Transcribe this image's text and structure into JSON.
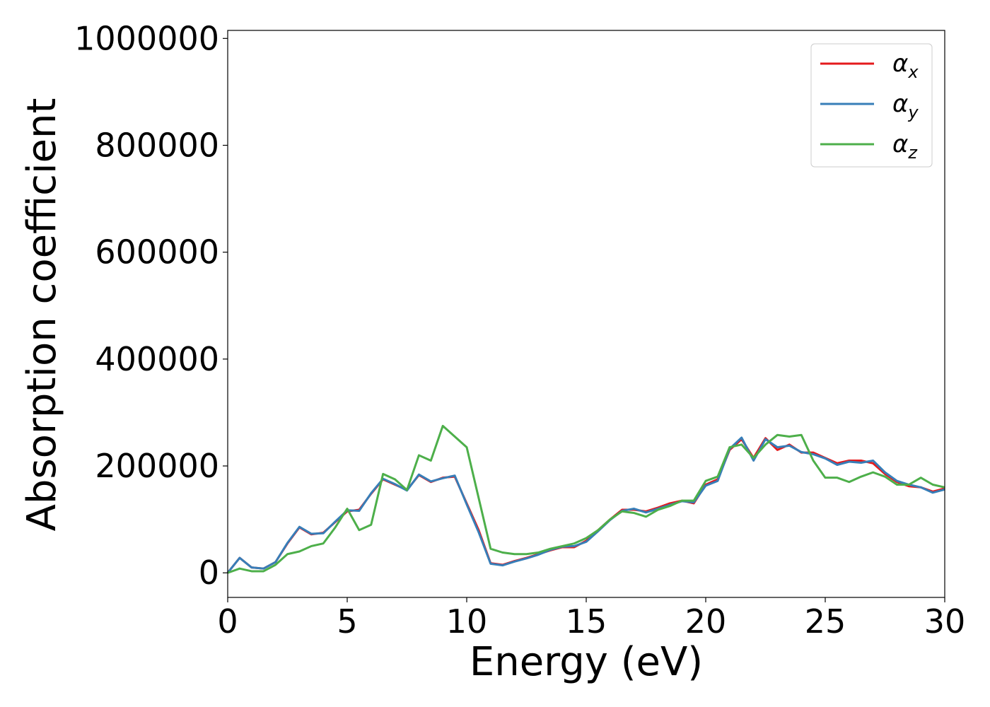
{
  "chart_data": {
    "type": "line",
    "xlabel": "Energy (eV)",
    "ylabel": "Absorption coefficient",
    "x": [
      0,
      0.5,
      1,
      1.5,
      2,
      2.5,
      3,
      3.5,
      4,
      4.5,
      5,
      5.5,
      6,
      6.5,
      7,
      7.5,
      8,
      8.5,
      9,
      9.5,
      10,
      10.5,
      11,
      11.5,
      12,
      12.5,
      13,
      13.5,
      14,
      14.5,
      15,
      15.5,
      16,
      16.5,
      17,
      17.5,
      18,
      18.5,
      19,
      19.5,
      20,
      20.5,
      21,
      21.5,
      22,
      22.5,
      23,
      23.5,
      24,
      24.5,
      25,
      25.5,
      26,
      26.5,
      27,
      27.5,
      28,
      28.5,
      29,
      29.5,
      30
    ],
    "series": [
      {
        "name": "αx",
        "color": "#e41a1c",
        "values": [
          0,
          28000,
          10000,
          8000,
          20000,
          55000,
          85000,
          72000,
          75000,
          95000,
          115000,
          118000,
          148000,
          175000,
          165000,
          155000,
          183000,
          170000,
          178000,
          180000,
          130000,
          80000,
          18000,
          15000,
          22000,
          28000,
          35000,
          42000,
          48000,
          48000,
          60000,
          80000,
          100000,
          118000,
          118000,
          115000,
          122000,
          130000,
          135000,
          130000,
          165000,
          175000,
          230000,
          250000,
          215000,
          252000,
          230000,
          240000,
          225000,
          225000,
          215000,
          205000,
          210000,
          210000,
          205000,
          185000,
          170000,
          162000,
          160000,
          152000,
          158000
        ]
      },
      {
        "name": "αy",
        "color": "#377eb8",
        "values": [
          0,
          28000,
          10000,
          8000,
          20000,
          56000,
          86000,
          73000,
          74000,
          96000,
          117000,
          116000,
          149000,
          176000,
          166000,
          154000,
          184000,
          171000,
          177000,
          182000,
          128000,
          76000,
          17000,
          14000,
          21000,
          27000,
          34000,
          43000,
          49000,
          50000,
          58000,
          78000,
          99000,
          116000,
          120000,
          113000,
          120000,
          127000,
          134000,
          132000,
          163000,
          172000,
          232000,
          253000,
          210000,
          250000,
          235000,
          238000,
          226000,
          222000,
          214000,
          202000,
          208000,
          206000,
          210000,
          188000,
          172000,
          165000,
          160000,
          150000,
          156000
        ]
      },
      {
        "name": "αz",
        "color": "#4daf4a",
        "values": [
          0,
          8000,
          3000,
          3000,
          15000,
          35000,
          40000,
          50000,
          55000,
          85000,
          120000,
          80000,
          90000,
          185000,
          175000,
          155000,
          220000,
          210000,
          275000,
          255000,
          235000,
          140000,
          45000,
          38000,
          35000,
          35000,
          38000,
          45000,
          50000,
          55000,
          65000,
          80000,
          100000,
          115000,
          112000,
          105000,
          118000,
          125000,
          135000,
          135000,
          172000,
          180000,
          235000,
          240000,
          215000,
          240000,
          258000,
          255000,
          258000,
          210000,
          178000,
          178000,
          170000,
          180000,
          188000,
          180000,
          165000,
          165000,
          178000,
          165000,
          160000
        ]
      }
    ],
    "xlim": [
      0,
      30
    ],
    "xticks": [
      0,
      5,
      10,
      15,
      20,
      25,
      30
    ],
    "ylim": [
      -46000,
      1015000
    ],
    "yticks": [
      0,
      200000,
      400000,
      600000,
      800000,
      1000000
    ],
    "grid": false,
    "legend": "upper right"
  }
}
